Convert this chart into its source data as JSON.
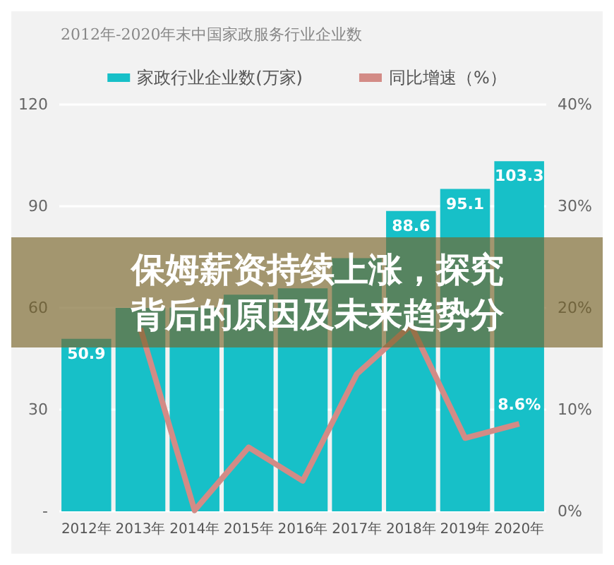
{
  "chart_data": {
    "type": "bar",
    "title": "2012年-2020年末中国家政服务行业企业数",
    "annotations": [
      "保姆薪资持续上涨，探究背后的原因及未来趋势分"
    ],
    "categories": [
      "2012年",
      "2013年",
      "2014年",
      "2015年",
      "2016年",
      "2017年",
      "2018年",
      "2019年",
      "2020年"
    ],
    "series": [
      {
        "name": "家政行业企业数(万家)",
        "color": "#17c0c8",
        "values": [
          50.9,
          60,
          60.1,
          63.9,
          65.8,
          74.7,
          88.6,
          95.1,
          103.3
        ],
        "value_labels": [
          "50.9",
          null,
          null,
          null,
          null,
          null,
          "88.6",
          "95.1",
          "103.3"
        ]
      },
      {
        "name": "同比增速（%）",
        "type": "line",
        "axis": "y2",
        "color": "#d38b86",
        "values": [
          null,
          18,
          0.1,
          6.3,
          3,
          13.5,
          18.3,
          7.2,
          8.6
        ],
        "value_labels": [
          null,
          null,
          null,
          null,
          null,
          null,
          null,
          null,
          "8.6%"
        ]
      }
    ],
    "ylim": [
      0,
      120
    ],
    "yticks": [
      {
        "value": 0,
        "label": "-"
      },
      30,
      60,
      90,
      120
    ],
    "y2lim": [
      0,
      40
    ],
    "y2ticks": [
      {
        "value": 0,
        "label": "0%"
      },
      {
        "value": 10,
        "label": "10%"
      },
      {
        "value": 20,
        "label": "20%"
      },
      {
        "value": 30,
        "label": "30%"
      },
      {
        "value": 40,
        "label": "40%"
      }
    ],
    "grid": "y",
    "legend": "top",
    "marker": "none"
  }
}
